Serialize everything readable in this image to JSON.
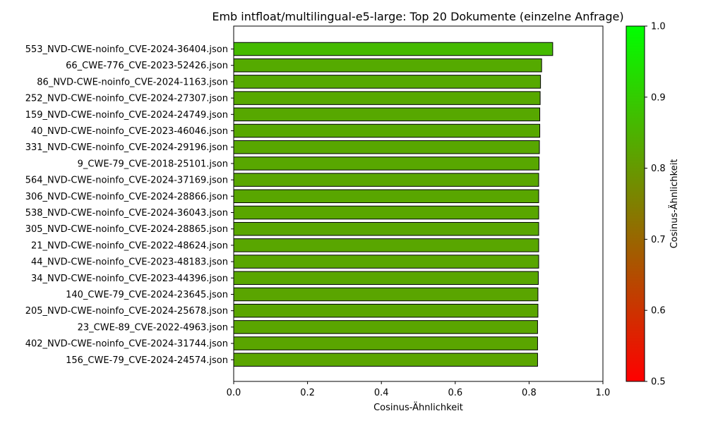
{
  "chart_data": {
    "type": "bar",
    "orientation": "horizontal",
    "title": "Emb intfloat/multilingual-e5-large: Top 20 Dokumente (einzelne Anfrage)",
    "xlabel": "Cosinus-Ähnlichkeit",
    "ylabel": "",
    "xlim": [
      0,
      1
    ],
    "xticks": [
      "0.0",
      "0.2",
      "0.4",
      "0.6",
      "0.8",
      "1.0"
    ],
    "categories": [
      "553_NVD-CWE-noinfo_CVE-2024-36404.json",
      "66_CWE-776_CVE-2023-52426.json",
      "86_NVD-CWE-noinfo_CVE-2024-1163.json",
      "252_NVD-CWE-noinfo_CVE-2024-27307.json",
      "159_NVD-CWE-noinfo_CVE-2024-24749.json",
      "40_NVD-CWE-noinfo_CVE-2023-46046.json",
      "331_NVD-CWE-noinfo_CVE-2024-29196.json",
      "9_CWE-79_CVE-2018-25101.json",
      "564_NVD-CWE-noinfo_CVE-2024-37169.json",
      "306_NVD-CWE-noinfo_CVE-2024-28866.json",
      "538_NVD-CWE-noinfo_CVE-2024-36043.json",
      "305_NVD-CWE-noinfo_CVE-2024-28865.json",
      "21_NVD-CWE-noinfo_CVE-2022-48624.json",
      "44_NVD-CWE-noinfo_CVE-2023-48183.json",
      "34_NVD-CWE-noinfo_CVE-2023-44396.json",
      "140_CWE-79_CVE-2024-23645.json",
      "205_NVD-CWE-noinfo_CVE-2024-25678.json",
      "23_CWE-89_CVE-2022-4963.json",
      "402_NVD-CWE-noinfo_CVE-2024-31744.json",
      "156_CWE-79_CVE-2024-24574.json"
    ],
    "values": [
      0.864,
      0.834,
      0.831,
      0.83,
      0.829,
      0.829,
      0.828,
      0.827,
      0.826,
      0.826,
      0.826,
      0.826,
      0.826,
      0.826,
      0.825,
      0.824,
      0.824,
      0.823,
      0.823,
      0.823
    ],
    "colorbar": {
      "label": "Cosinus-Ähnlichkeit",
      "range": [
        0.5,
        1.0
      ],
      "ticks": [
        "0.5",
        "0.6",
        "0.7",
        "0.8",
        "0.9",
        "1.0"
      ],
      "color_low": "#ff0000",
      "color_high": "#00ff00"
    },
    "bar_edge_color": "#000000",
    "grid": false
  }
}
